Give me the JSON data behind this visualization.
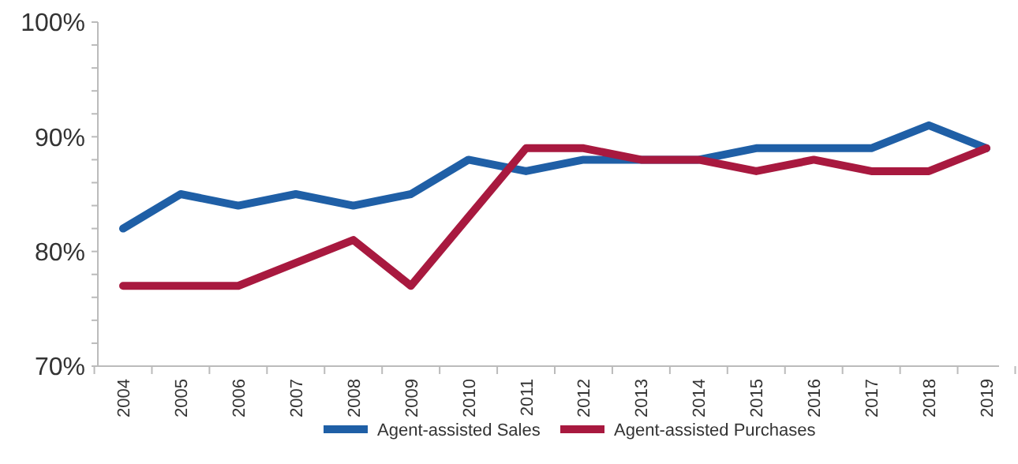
{
  "chart_data": {
    "type": "line",
    "categories": [
      "2004",
      "2005",
      "2006",
      "2007",
      "2008",
      "2009",
      "2010",
      "2011",
      "2012",
      "2013",
      "2014",
      "2015",
      "2016",
      "2017",
      "2018",
      "2019"
    ],
    "series": [
      {
        "name": "Agent-assisted Sales",
        "color": "#1f5fa6",
        "values": [
          82,
          85,
          84,
          85,
          84,
          85,
          88,
          87,
          88,
          88,
          88,
          89,
          89,
          89,
          91,
          89
        ]
      },
      {
        "name": "Agent-assisted Purchases",
        "color": "#a8193f",
        "values": [
          77,
          77,
          77,
          79,
          81,
          77,
          83,
          89,
          89,
          88,
          88,
          87,
          88,
          87,
          87,
          89
        ]
      }
    ],
    "ylim": [
      70,
      100
    ],
    "yticks": [
      {
        "value": 70,
        "label": "70%"
      },
      {
        "value": 80,
        "label": "80%"
      },
      {
        "value": 90,
        "label": "90%"
      },
      {
        "value": 100,
        "label": "100%"
      }
    ],
    "grid": false,
    "legend": "bottom",
    "marker": "none",
    "line_style": "solid"
  }
}
